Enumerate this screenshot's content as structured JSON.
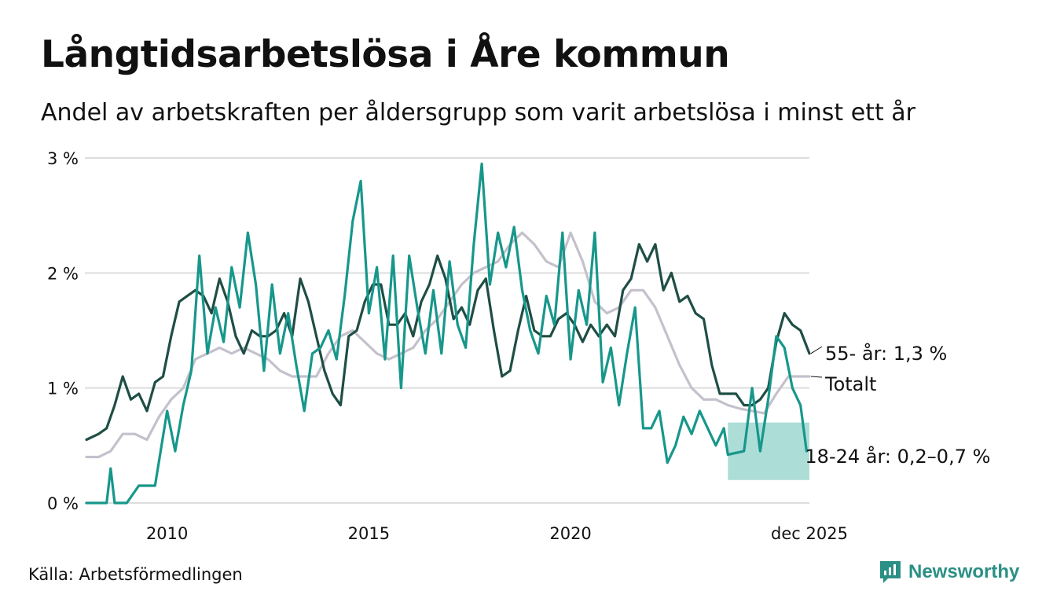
{
  "header": {
    "title": "Långtidsarbetslösa i Åre kommun",
    "subtitle": "Andel av arbetskraften per åldersgrupp som varit arbetslösa i minst ett år"
  },
  "footer": {
    "source": "Källa: Arbetsförmedlingen",
    "brand": "Newsworthy"
  },
  "colors": {
    "age_55": "#1f4e45",
    "total": "#c4c1cc",
    "age_18_24": "#17978b",
    "band": "#a4d9d3",
    "grid": "#dddddd"
  },
  "chart_data": {
    "type": "line",
    "title": "Långtidsarbetslösa i Åre kommun",
    "subtitle": "Andel av arbetskraften per åldersgrupp som varit arbetslösa i minst ett år",
    "xlabel": "",
    "ylabel": "",
    "xlim": [
      2008.0,
      2025.92
    ],
    "ylim": [
      0,
      3
    ],
    "y_ticks": [
      0,
      1,
      2,
      3
    ],
    "y_tick_labels": [
      "0 %",
      "1 %",
      "2 %",
      "3 %"
    ],
    "x_ticks": [
      2010,
      2015,
      2020,
      2025.92
    ],
    "x_tick_labels": [
      "2010",
      "2015",
      "2020",
      "dec 2025"
    ],
    "grid": true,
    "series": [
      {
        "name": "Totalt",
        "color_key": "total",
        "end_label": "Totalt",
        "points": [
          [
            2008.0,
            0.4
          ],
          [
            2008.3,
            0.4
          ],
          [
            2008.6,
            0.45
          ],
          [
            2008.9,
            0.6
          ],
          [
            2009.2,
            0.6
          ],
          [
            2009.5,
            0.55
          ],
          [
            2009.8,
            0.75
          ],
          [
            2010.1,
            0.9
          ],
          [
            2010.4,
            1.0
          ],
          [
            2010.7,
            1.25
          ],
          [
            2011.0,
            1.3
          ],
          [
            2011.3,
            1.35
          ],
          [
            2011.6,
            1.3
          ],
          [
            2011.9,
            1.35
          ],
          [
            2012.2,
            1.3
          ],
          [
            2012.5,
            1.25
          ],
          [
            2012.8,
            1.15
          ],
          [
            2013.1,
            1.1
          ],
          [
            2013.4,
            1.1
          ],
          [
            2013.7,
            1.1
          ],
          [
            2014.0,
            1.3
          ],
          [
            2014.3,
            1.45
          ],
          [
            2014.6,
            1.5
          ],
          [
            2014.9,
            1.4
          ],
          [
            2015.2,
            1.3
          ],
          [
            2015.5,
            1.25
          ],
          [
            2015.8,
            1.3
          ],
          [
            2016.1,
            1.35
          ],
          [
            2016.4,
            1.5
          ],
          [
            2016.7,
            1.6
          ],
          [
            2017.0,
            1.75
          ],
          [
            2017.3,
            1.9
          ],
          [
            2017.6,
            2.0
          ],
          [
            2017.9,
            2.05
          ],
          [
            2018.2,
            2.1
          ],
          [
            2018.5,
            2.25
          ],
          [
            2018.8,
            2.35
          ],
          [
            2019.1,
            2.25
          ],
          [
            2019.4,
            2.1
          ],
          [
            2019.7,
            2.05
          ],
          [
            2020.0,
            2.35
          ],
          [
            2020.3,
            2.1
          ],
          [
            2020.6,
            1.75
          ],
          [
            2020.9,
            1.65
          ],
          [
            2021.2,
            1.7
          ],
          [
            2021.5,
            1.85
          ],
          [
            2021.8,
            1.85
          ],
          [
            2022.1,
            1.7
          ],
          [
            2022.4,
            1.45
          ],
          [
            2022.7,
            1.2
          ],
          [
            2023.0,
            1.0
          ],
          [
            2023.3,
            0.9
          ],
          [
            2023.6,
            0.9
          ],
          [
            2023.9,
            0.85
          ],
          [
            2024.2,
            0.82
          ],
          [
            2024.5,
            0.8
          ],
          [
            2024.8,
            0.78
          ],
          [
            2025.1,
            0.95
          ],
          [
            2025.4,
            1.1
          ],
          [
            2025.7,
            1.1
          ],
          [
            2025.92,
            1.1
          ]
        ]
      },
      {
        "name": "55- år",
        "color_key": "age_55",
        "end_label": "55- år: 1,3 %",
        "points": [
          [
            2008.0,
            0.55
          ],
          [
            2008.3,
            0.6
          ],
          [
            2008.5,
            0.65
          ],
          [
            2008.7,
            0.85
          ],
          [
            2008.9,
            1.1
          ],
          [
            2009.1,
            0.9
          ],
          [
            2009.3,
            0.95
          ],
          [
            2009.5,
            0.8
          ],
          [
            2009.7,
            1.05
          ],
          [
            2009.9,
            1.1
          ],
          [
            2010.1,
            1.45
          ],
          [
            2010.3,
            1.75
          ],
          [
            2010.5,
            1.8
          ],
          [
            2010.7,
            1.85
          ],
          [
            2010.9,
            1.8
          ],
          [
            2011.1,
            1.65
          ],
          [
            2011.3,
            1.95
          ],
          [
            2011.5,
            1.75
          ],
          [
            2011.7,
            1.45
          ],
          [
            2011.9,
            1.3
          ],
          [
            2012.1,
            1.5
          ],
          [
            2012.3,
            1.45
          ],
          [
            2012.5,
            1.45
          ],
          [
            2012.7,
            1.5
          ],
          [
            2012.9,
            1.65
          ],
          [
            2013.1,
            1.45
          ],
          [
            2013.3,
            1.95
          ],
          [
            2013.5,
            1.75
          ],
          [
            2013.7,
            1.45
          ],
          [
            2013.9,
            1.15
          ],
          [
            2014.1,
            0.95
          ],
          [
            2014.3,
            0.85
          ],
          [
            2014.5,
            1.45
          ],
          [
            2014.7,
            1.5
          ],
          [
            2014.9,
            1.75
          ],
          [
            2015.1,
            1.9
          ],
          [
            2015.3,
            1.9
          ],
          [
            2015.5,
            1.55
          ],
          [
            2015.7,
            1.55
          ],
          [
            2015.9,
            1.65
          ],
          [
            2016.1,
            1.45
          ],
          [
            2016.3,
            1.75
          ],
          [
            2016.5,
            1.9
          ],
          [
            2016.7,
            2.15
          ],
          [
            2016.9,
            1.95
          ],
          [
            2017.1,
            1.6
          ],
          [
            2017.3,
            1.7
          ],
          [
            2017.5,
            1.55
          ],
          [
            2017.7,
            1.85
          ],
          [
            2017.9,
            1.95
          ],
          [
            2018.1,
            1.5
          ],
          [
            2018.3,
            1.1
          ],
          [
            2018.5,
            1.15
          ],
          [
            2018.7,
            1.5
          ],
          [
            2018.9,
            1.8
          ],
          [
            2019.1,
            1.5
          ],
          [
            2019.3,
            1.45
          ],
          [
            2019.5,
            1.45
          ],
          [
            2019.7,
            1.6
          ],
          [
            2019.9,
            1.65
          ],
          [
            2020.1,
            1.55
          ],
          [
            2020.3,
            1.4
          ],
          [
            2020.5,
            1.55
          ],
          [
            2020.7,
            1.45
          ],
          [
            2020.9,
            1.55
          ],
          [
            2021.1,
            1.45
          ],
          [
            2021.3,
            1.85
          ],
          [
            2021.5,
            1.95
          ],
          [
            2021.7,
            2.25
          ],
          [
            2021.9,
            2.1
          ],
          [
            2022.1,
            2.25
          ],
          [
            2022.3,
            1.85
          ],
          [
            2022.5,
            2.0
          ],
          [
            2022.7,
            1.75
          ],
          [
            2022.9,
            1.8
          ],
          [
            2023.1,
            1.65
          ],
          [
            2023.3,
            1.6
          ],
          [
            2023.5,
            1.2
          ],
          [
            2023.7,
            0.95
          ],
          [
            2023.9,
            0.95
          ],
          [
            2024.1,
            0.95
          ],
          [
            2024.3,
            0.85
          ],
          [
            2024.5,
            0.85
          ],
          [
            2024.7,
            0.9
          ],
          [
            2024.9,
            1.0
          ],
          [
            2025.1,
            1.4
          ],
          [
            2025.3,
            1.65
          ],
          [
            2025.5,
            1.55
          ],
          [
            2025.7,
            1.5
          ],
          [
            2025.92,
            1.3
          ]
        ]
      },
      {
        "name": "18-24 år",
        "color_key": "age_18_24",
        "end_label": "18-24 år: 0,2–0,7 %",
        "band": {
          "x_start": 2023.9,
          "x_end": 2025.92,
          "lower": 0.2,
          "upper": 0.7
        },
        "points": [
          [
            2008.0,
            0.0
          ],
          [
            2008.5,
            0.0
          ],
          [
            2008.6,
            0.3
          ],
          [
            2008.7,
            0.0
          ],
          [
            2009.0,
            0.0
          ],
          [
            2009.3,
            0.15
          ],
          [
            2009.7,
            0.15
          ],
          [
            2010.0,
            0.8
          ],
          [
            2010.2,
            0.45
          ],
          [
            2010.4,
            0.85
          ],
          [
            2010.6,
            1.15
          ],
          [
            2010.8,
            2.15
          ],
          [
            2011.0,
            1.3
          ],
          [
            2011.2,
            1.7
          ],
          [
            2011.4,
            1.4
          ],
          [
            2011.6,
            2.05
          ],
          [
            2011.8,
            1.7
          ],
          [
            2012.0,
            2.35
          ],
          [
            2012.2,
            1.9
          ],
          [
            2012.4,
            1.15
          ],
          [
            2012.6,
            1.9
          ],
          [
            2012.8,
            1.3
          ],
          [
            2013.0,
            1.65
          ],
          [
            2013.2,
            1.2
          ],
          [
            2013.4,
            0.8
          ],
          [
            2013.6,
            1.3
          ],
          [
            2013.8,
            1.35
          ],
          [
            2014.0,
            1.5
          ],
          [
            2014.2,
            1.25
          ],
          [
            2014.4,
            1.8
          ],
          [
            2014.6,
            2.45
          ],
          [
            2014.8,
            2.8
          ],
          [
            2015.0,
            1.65
          ],
          [
            2015.2,
            2.05
          ],
          [
            2015.4,
            1.25
          ],
          [
            2015.6,
            2.15
          ],
          [
            2015.8,
            1.0
          ],
          [
            2016.0,
            2.15
          ],
          [
            2016.2,
            1.7
          ],
          [
            2016.4,
            1.3
          ],
          [
            2016.6,
            1.85
          ],
          [
            2016.8,
            1.3
          ],
          [
            2017.0,
            2.1
          ],
          [
            2017.2,
            1.55
          ],
          [
            2017.4,
            1.35
          ],
          [
            2017.6,
            2.25
          ],
          [
            2017.8,
            2.95
          ],
          [
            2018.0,
            1.9
          ],
          [
            2018.2,
            2.35
          ],
          [
            2018.4,
            2.05
          ],
          [
            2018.6,
            2.4
          ],
          [
            2018.8,
            1.85
          ],
          [
            2019.0,
            1.5
          ],
          [
            2019.2,
            1.3
          ],
          [
            2019.4,
            1.8
          ],
          [
            2019.6,
            1.55
          ],
          [
            2019.8,
            2.35
          ],
          [
            2020.0,
            1.25
          ],
          [
            2020.2,
            1.85
          ],
          [
            2020.4,
            1.55
          ],
          [
            2020.6,
            2.35
          ],
          [
            2020.8,
            1.05
          ],
          [
            2021.0,
            1.35
          ],
          [
            2021.2,
            0.85
          ],
          [
            2021.4,
            1.3
          ],
          [
            2021.6,
            1.7
          ],
          [
            2021.8,
            0.65
          ],
          [
            2022.0,
            0.65
          ],
          [
            2022.2,
            0.8
          ],
          [
            2022.4,
            0.35
          ],
          [
            2022.6,
            0.5
          ],
          [
            2022.8,
            0.75
          ],
          [
            2023.0,
            0.6
          ],
          [
            2023.2,
            0.8
          ],
          [
            2023.4,
            0.65
          ],
          [
            2023.6,
            0.5
          ],
          [
            2023.8,
            0.65
          ],
          [
            2023.9,
            0.42
          ],
          [
            2024.3,
            0.45
          ],
          [
            2024.5,
            1.0
          ],
          [
            2024.7,
            0.45
          ],
          [
            2024.9,
            0.9
          ],
          [
            2025.1,
            1.45
          ],
          [
            2025.3,
            1.35
          ],
          [
            2025.5,
            1.0
          ],
          [
            2025.7,
            0.85
          ],
          [
            2025.85,
            0.45
          ]
        ]
      }
    ]
  }
}
